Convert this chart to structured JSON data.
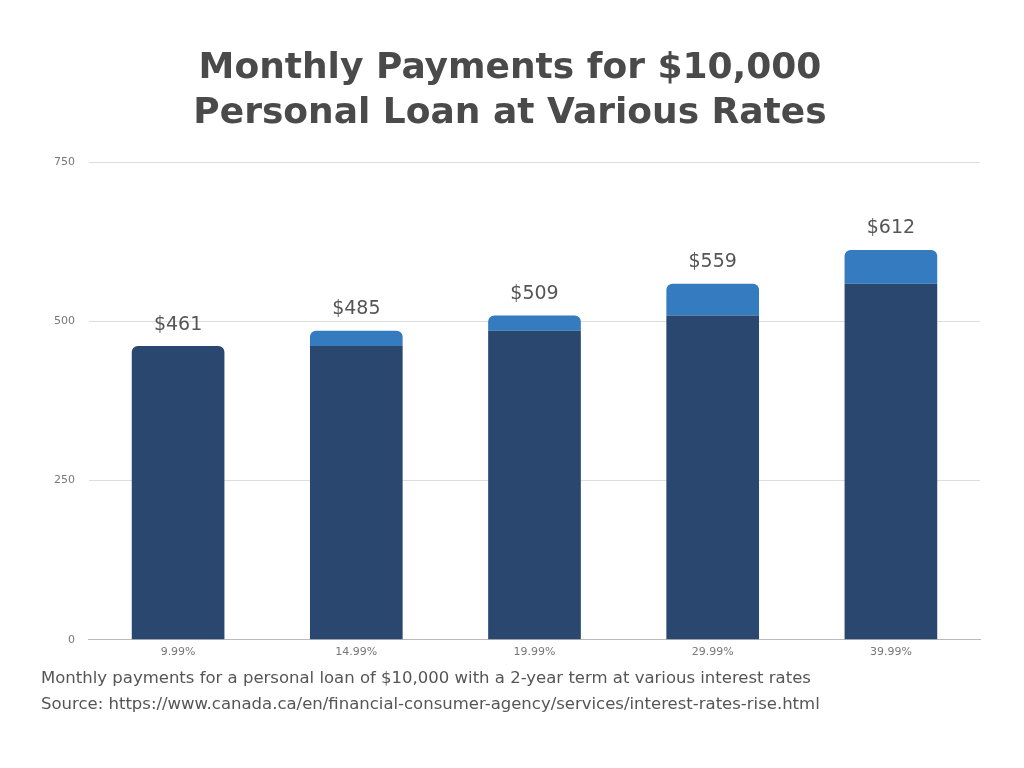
{
  "chart_data": {
    "type": "bar",
    "title": "Monthly Payments for $10,000\nPersonal Loan at Various Rates",
    "categories": [
      "9.99%",
      "14.99%",
      "19.99%",
      "29.99%",
      "39.99%"
    ],
    "stacked": true,
    "series": [
      {
        "color": "#29476f",
        "values": [
          461,
          461,
          485,
          509,
          559
        ]
      },
      {
        "color": "#347bc0",
        "values": [
          null,
          24,
          24,
          50,
          53
        ]
      }
    ],
    "totals": [
      "$461",
      "$485",
      "$509",
      "$559",
      "$612"
    ],
    "ylim": [
      0,
      750
    ],
    "yticks": [
      0,
      250,
      500,
      750
    ],
    "grid": "y",
    "legend": false,
    "annotations": [
      "Monthly payments for a personal loan of $10,000 with a 2-year term at various interest rates",
      "Source: https://www.canada.ca/en/financial-consumer-agency/services/interest-rates-rise.html"
    ]
  }
}
